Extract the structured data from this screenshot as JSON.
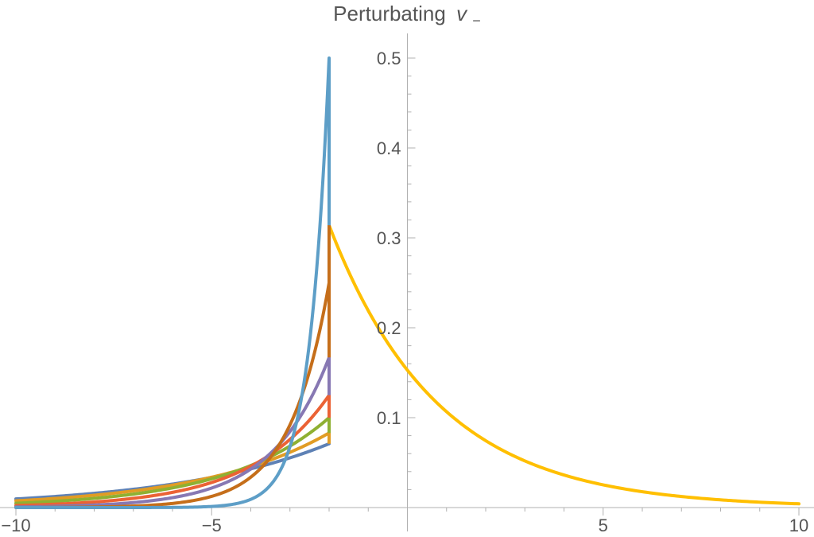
{
  "chart_data": {
    "type": "line",
    "title": "Perturbating",
    "title_var": "v",
    "title_sub": "−",
    "xlim": [
      -10,
      10
    ],
    "ylim": [
      0,
      0.52
    ],
    "xticks": [
      -10,
      -5,
      5,
      10
    ],
    "xtick_labels": [
      "−10",
      "−5",
      "5",
      "10"
    ],
    "yticks": [
      0.1,
      0.2,
      0.3,
      0.4,
      0.5
    ],
    "ytick_labels": [
      "0.1",
      "0.2",
      "0.3",
      "0.4",
      "0.5"
    ],
    "grid": false,
    "series": [
      {
        "color": "#5e81b5",
        "kind": "left_exp",
        "peak": 0.071,
        "rate": 0.25
      },
      {
        "color": "#e19c24",
        "kind": "left_exp",
        "peak": 0.083,
        "rate": 0.3
      },
      {
        "color": "#8fb032",
        "kind": "left_exp",
        "peak": 0.1,
        "rate": 0.38
      },
      {
        "color": "#eb6235",
        "kind": "left_exp",
        "peak": 0.125,
        "rate": 0.5
      },
      {
        "color": "#8778b3",
        "kind": "left_exp",
        "peak": 0.167,
        "rate": 0.68
      },
      {
        "color": "#c56e1a",
        "kind": "left_exp",
        "peak": 0.25,
        "rate": 1.0
      },
      {
        "color": "#5d9ec7",
        "kind": "left_exp",
        "peak": 0.5,
        "rate": 2.0
      },
      {
        "color": "#ffbf00",
        "kind": "right_exp",
        "peak": 0.314,
        "rate": 0.36
      }
    ],
    "jump_x": -2,
    "jump_bottom": 0.071,
    "jump_top": 0.314
  }
}
